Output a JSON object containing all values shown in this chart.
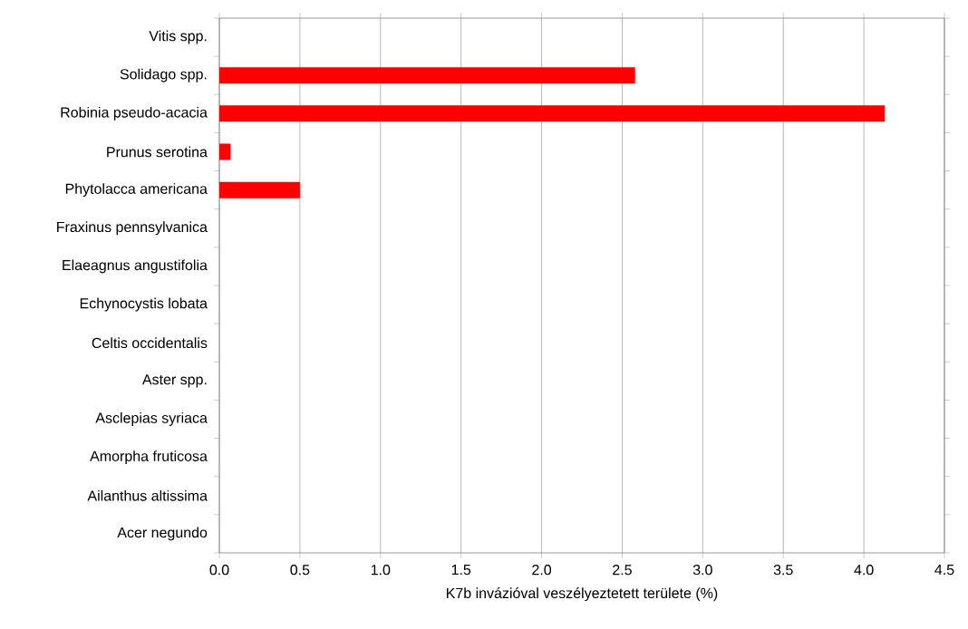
{
  "chart_data": {
    "type": "bar",
    "orientation": "horizontal",
    "xlabel": "K7b invázióval veszélyeztetett területe (%)",
    "categories": [
      "Vitis spp.",
      "Solidago spp.",
      "Robinia pseudo-acacia",
      "Prunus serotina",
      "Phytolacca americana",
      "Fraxinus pennsylvanica",
      "Elaeagnus angustifolia",
      "Echynocystis lobata",
      "Celtis occidentalis",
      "Aster spp.",
      "Asclepias syriaca",
      "Amorpha fruticosa",
      "Ailanthus altissima",
      "Acer negundo"
    ],
    "values": [
      0,
      2.58,
      4.13,
      0.07,
      0.5,
      0,
      0,
      0,
      0,
      0,
      0,
      0,
      0,
      0
    ],
    "color": "#ff0000",
    "xlim": [
      0,
      4.5
    ],
    "xticks": [
      {
        "value": 0,
        "label": "0.0"
      },
      {
        "value": 0.5,
        "label": "0.5"
      },
      {
        "value": 1,
        "label": "1.0"
      },
      {
        "value": 1.5,
        "label": "1.5"
      },
      {
        "value": 2,
        "label": "2.0"
      },
      {
        "value": 2.5,
        "label": "2.5"
      },
      {
        "value": 3,
        "label": "3.0"
      },
      {
        "value": 3.5,
        "label": "3.5"
      },
      {
        "value": 4,
        "label": "4.0"
      },
      {
        "value": 4.5,
        "label": "4.5"
      }
    ],
    "grid": "x"
  }
}
